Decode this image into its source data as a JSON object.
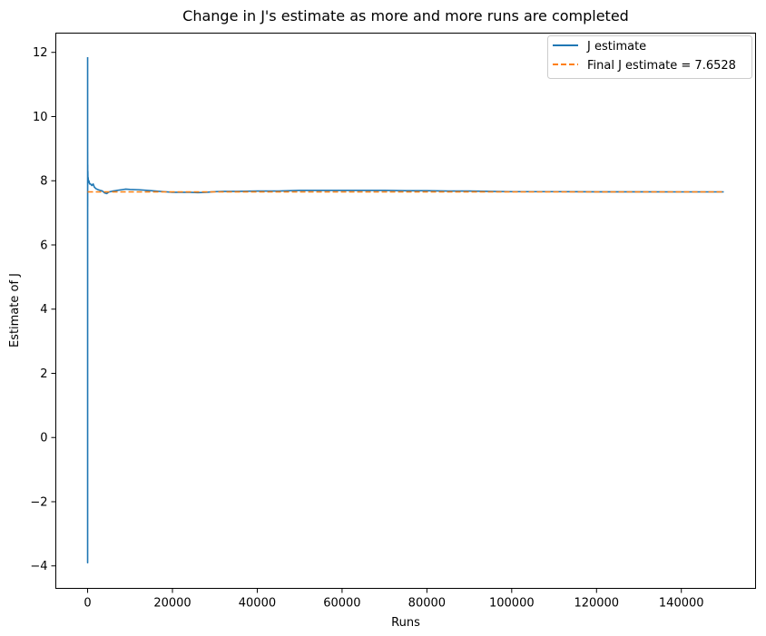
{
  "chart_data": {
    "type": "line",
    "title": "Change in J's estimate as more and more runs are completed",
    "xlabel": "Runs",
    "ylabel": "Estimate of J",
    "xlim": [
      -7500,
      157500
    ],
    "ylim": [
      -4.7,
      12.6
    ],
    "xticks": [
      0,
      20000,
      40000,
      60000,
      80000,
      100000,
      120000,
      140000
    ],
    "xtick_labels": [
      "0",
      "20000",
      "40000",
      "60000",
      "80000",
      "100000",
      "120000",
      "140000"
    ],
    "yticks": [
      -4,
      -2,
      0,
      2,
      4,
      6,
      8,
      10,
      12
    ],
    "ytick_labels": [
      "−4",
      "−2",
      "0",
      "2",
      "4",
      "6",
      "8",
      "10",
      "12"
    ],
    "grid": false,
    "legend_position": "top-right",
    "series": [
      {
        "name": "J estimate",
        "color": "#1f77b4",
        "style": "solid",
        "x": [
          1,
          2,
          3,
          5,
          8,
          12,
          20,
          30,
          50,
          80,
          120,
          200,
          300,
          500,
          700,
          1000,
          1300,
          1600,
          2000,
          2500,
          3000,
          3500,
          4000,
          4500,
          5000,
          6000,
          7000,
          8000,
          9000,
          10000,
          12000,
          14000,
          16000,
          18000,
          20000,
          22000,
          24000,
          26000,
          28000,
          30000,
          32000,
          35000,
          40000,
          45000,
          50000,
          55000,
          60000,
          65000,
          70000,
          75000,
          80000,
          85000,
          90000,
          95000,
          100000,
          110000,
          120000,
          130000,
          140000,
          150000
        ],
        "y": [
          11.85,
          -3.9,
          9.6,
          6.5,
          8.9,
          7.2,
          8.5,
          7.9,
          8.3,
          8.0,
          8.1,
          7.95,
          8.0,
          7.9,
          7.9,
          7.85,
          7.9,
          7.8,
          7.75,
          7.72,
          7.7,
          7.68,
          7.62,
          7.6,
          7.65,
          7.68,
          7.7,
          7.72,
          7.74,
          7.73,
          7.72,
          7.7,
          7.68,
          7.66,
          7.64,
          7.64,
          7.64,
          7.63,
          7.64,
          7.66,
          7.67,
          7.67,
          7.68,
          7.68,
          7.7,
          7.7,
          7.7,
          7.7,
          7.7,
          7.69,
          7.69,
          7.68,
          7.68,
          7.67,
          7.66,
          7.66,
          7.655,
          7.655,
          7.653,
          7.6528
        ]
      },
      {
        "name": "Final J estimate = 7.6528",
        "color": "#ff7f0e",
        "style": "dashed",
        "x": [
          0,
          150000
        ],
        "y": [
          7.6528,
          7.6528
        ]
      }
    ]
  }
}
